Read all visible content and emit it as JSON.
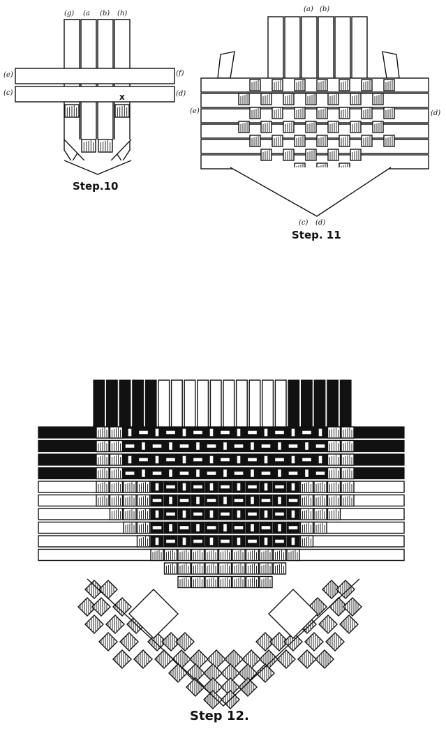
{
  "figures": [
    {
      "caption": "Step.10",
      "labels": [
        {
          "id": "step10-label-g",
          "text": "(g)"
        },
        {
          "id": "step10-label-a",
          "text": "(a"
        },
        {
          "id": "step10-label-b",
          "text": "(b)"
        },
        {
          "id": "step10-label-h",
          "text": "(h)"
        },
        {
          "id": "step10-label-e",
          "text": "(e)"
        },
        {
          "id": "step10-label-c",
          "text": "(c)"
        },
        {
          "id": "step10-label-f",
          "text": "(f)"
        },
        {
          "id": "step10-label-d",
          "text": "(d)"
        },
        {
          "id": "step10-label-x",
          "text": "x"
        }
      ]
    },
    {
      "caption": "Step. 11",
      "labels": [
        {
          "id": "step11-label-a",
          "text": "(a)"
        },
        {
          "id": "step11-label-b",
          "text": "(b)"
        },
        {
          "id": "step11-label-e",
          "text": "(e)"
        },
        {
          "id": "step11-label-d",
          "text": "(d)"
        },
        {
          "id": "step11-label-c-bottom",
          "text": "(c)"
        },
        {
          "id": "step11-label-d-bottom",
          "text": "(d)"
        }
      ]
    },
    {
      "caption": "Step 12.",
      "labels": []
    }
  ],
  "palette": {
    "ink": "#111111",
    "paper": "#ffffff"
  }
}
